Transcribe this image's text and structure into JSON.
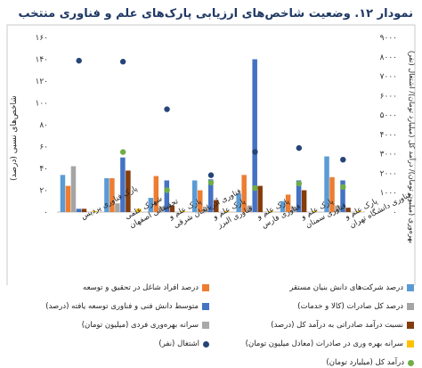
{
  "page": {
    "title": "نمودار ۱۲. وضعیت شاخص‌های ارزیابی پارک‌های علم و فناوری منتخب"
  },
  "chart_data": {
    "type": "bar",
    "title": "نمودار ۱۲. وضعیت شاخص‌های ارزیابی پارک‌های علم و فناوری منتخب",
    "ylabel_left": "شاخص‌های نسبی (درصد)",
    "ylabel_right": "بهره‌وری (میلیون تومان)/ درآمد کل (میلیارد تومان)/ اشتغال (نفر)",
    "ylim_left": [
      0,
      160
    ],
    "ylim_right": [
      0,
      9000
    ],
    "left_ticks": [
      "۰",
      "۲۰",
      "۴۰",
      "۶۰",
      "۸۰",
      "۱۰۰",
      "۱۲۰",
      "۱۴۰",
      "۱۶۰"
    ],
    "right_ticks": [
      "۰",
      "۱۰۰۰",
      "۲۰۰۰",
      "۳۰۰۰",
      "۴۰۰۰",
      "۵۰۰۰",
      "۶۰۰۰",
      "۷۰۰۰",
      "۸۰۰۰",
      "۹۰۰۰"
    ],
    "categories": [
      "پارک فناوری پردیس",
      "شهرک علمی تحقیقاتی اصفهان",
      "پارک علم و فناوری آذربایجان شرقی",
      "پارک علم و فناوری البرز",
      "پارک علم و فناوری فارس",
      "پارک علم و فناوری سمنان",
      "پارک علم و فناوری دانشگاه تهران"
    ],
    "bar_series": [
      {
        "name": "درصد شرکت‌های دانش بنیان مستقر",
        "color": "#5b9bd5",
        "values": [
          34,
          31,
          13,
          29,
          17,
          10,
          51
        ]
      },
      {
        "name": "درصد افراد شاغل در تحقیق و توسعه",
        "color": "#ed7d31",
        "values": [
          24,
          31,
          33,
          20,
          34,
          16,
          32
        ]
      },
      {
        "name": "درصد کل صادرات (کالا و خدمات)",
        "color": "#a5a5a5",
        "values": [
          42,
          8,
          5,
          5,
          6,
          5,
          6
        ]
      },
      {
        "name": "متوسط دانش فنی و فناوری توسعه یافته (درصد)",
        "color": "#4472c4",
        "values": [
          3,
          50,
          29,
          30,
          140,
          29,
          29
        ]
      },
      {
        "name": "نسبت درآمد صادراتی به درآمد کل (درصد)",
        "color": "#843c0c",
        "values": [
          3,
          38,
          6,
          11,
          24,
          20,
          4
        ]
      },
      {
        "name": "سرانه بهره‌وری فردی (میلیون تومان)",
        "color": "#a9a9a9",
        "values": [
          0,
          0,
          0,
          0,
          0,
          0,
          0
        ]
      },
      {
        "name": "سرانه بهره وری در صادرات (معادل میلیون تومان)",
        "color": "#ffc000",
        "values": [
          1,
          3,
          1,
          1,
          1,
          1,
          1
        ]
      }
    ],
    "point_series": [
      {
        "name": "اشتغال (نفر)",
        "color": "#264478",
        "values": [
          7800,
          7750,
          5300,
          1900,
          3100,
          3300,
          2700
        ]
      },
      {
        "name": "درآمد کل (میلیارد تومان)",
        "color": "#70ad47",
        "values": null,
        "values_axis": "left",
        "values_left": [
          null,
          55,
          20,
          27,
          22,
          26,
          23
        ]
      }
    ],
    "legend_position": "bottom",
    "grid": false
  }
}
